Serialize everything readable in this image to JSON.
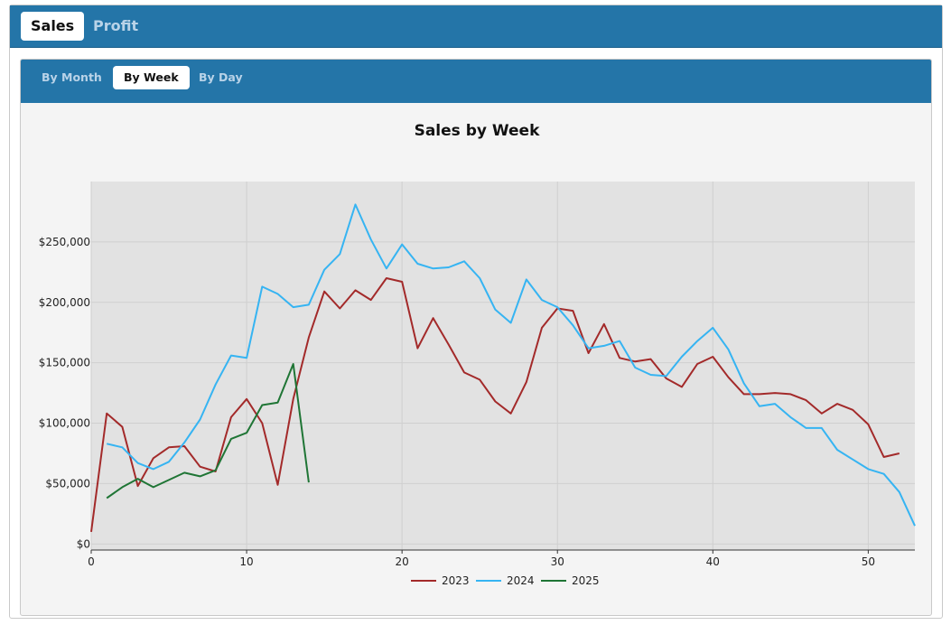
{
  "tabs": {
    "sales": "Sales",
    "profit": "Profit"
  },
  "subtabs": {
    "by_month": "By Month",
    "by_week": "By Week",
    "by_day": "By Day"
  },
  "colors": {
    "header": "#2475a8",
    "plot_bg": "#e2e2e2",
    "s2023": "#a32a2a",
    "s2024": "#36b4f2",
    "s2025": "#1f7535"
  },
  "chart_data": {
    "type": "line",
    "title": "Sales by Week",
    "xlabel": "",
    "ylabel": "",
    "xlim": [
      0,
      53
    ],
    "ylim": [
      -5000,
      300000
    ],
    "xticks": [
      0,
      10,
      20,
      30,
      40,
      50
    ],
    "yticks": [
      0,
      50000,
      100000,
      150000,
      200000,
      250000
    ],
    "ytick_labels": [
      "$0",
      "$50,000",
      "$100,000",
      "$150,000",
      "$200,000",
      "$250,000"
    ],
    "grid": true,
    "legend": "bottom-center",
    "series": [
      {
        "name": "2023",
        "color": "#a32a2a",
        "x": [
          0,
          1,
          2,
          3,
          4,
          5,
          6,
          7,
          8,
          9,
          10,
          11,
          12,
          13,
          14,
          15,
          16,
          17,
          18,
          19,
          20,
          21,
          22,
          23,
          24,
          25,
          26,
          27,
          28,
          29,
          30,
          31,
          32,
          33,
          34,
          35,
          36,
          37,
          38,
          39,
          40,
          41,
          42,
          43,
          44,
          45,
          46,
          47,
          48,
          49,
          50,
          51,
          52
        ],
        "y": [
          10000,
          108000,
          97000,
          48000,
          71000,
          80000,
          81000,
          64000,
          60000,
          105000,
          120000,
          100000,
          49000,
          120000,
          171000,
          209000,
          195000,
          210000,
          202000,
          220000,
          217000,
          162000,
          187000,
          165000,
          142000,
          136000,
          118000,
          108000,
          134000,
          179000,
          195000,
          193000,
          158000,
          182000,
          154000,
          151000,
          153000,
          137000,
          130000,
          149000,
          155000,
          138000,
          124000,
          124000,
          125000,
          124000,
          119000,
          108000,
          116000,
          111000,
          99000,
          72000,
          75000
        ]
      },
      {
        "name": "2024",
        "color": "#36b4f2",
        "x": [
          1,
          2,
          3,
          4,
          5,
          6,
          7,
          8,
          9,
          10,
          11,
          12,
          13,
          14,
          15,
          16,
          17,
          18,
          19,
          20,
          21,
          22,
          23,
          24,
          25,
          26,
          27,
          28,
          29,
          30,
          31,
          32,
          33,
          34,
          35,
          36,
          37,
          38,
          39,
          40,
          41,
          42,
          43,
          44,
          45,
          46,
          47,
          48,
          49,
          50,
          51,
          52,
          53
        ],
        "y": [
          83000,
          80000,
          67000,
          62000,
          68000,
          84000,
          103000,
          132000,
          156000,
          154000,
          213000,
          207000,
          196000,
          198000,
          227000,
          240000,
          281000,
          252000,
          228000,
          248000,
          232000,
          228000,
          229000,
          234000,
          220000,
          194000,
          183000,
          219000,
          202000,
          196000,
          181000,
          162000,
          164000,
          168000,
          146000,
          140000,
          139000,
          155000,
          168000,
          179000,
          161000,
          133000,
          114000,
          116000,
          105000,
          96000,
          96000,
          78000,
          70000,
          62000,
          58000,
          43000,
          15000
        ]
      },
      {
        "name": "2025",
        "color": "#1f7535",
        "x": [
          1,
          2,
          3,
          4,
          5,
          6,
          7,
          8,
          9,
          10,
          11,
          12,
          13,
          14
        ],
        "y": [
          38000,
          47000,
          54000,
          47000,
          53000,
          59000,
          56000,
          61000,
          87000,
          92000,
          115000,
          117000,
          149000,
          51000
        ]
      }
    ]
  }
}
